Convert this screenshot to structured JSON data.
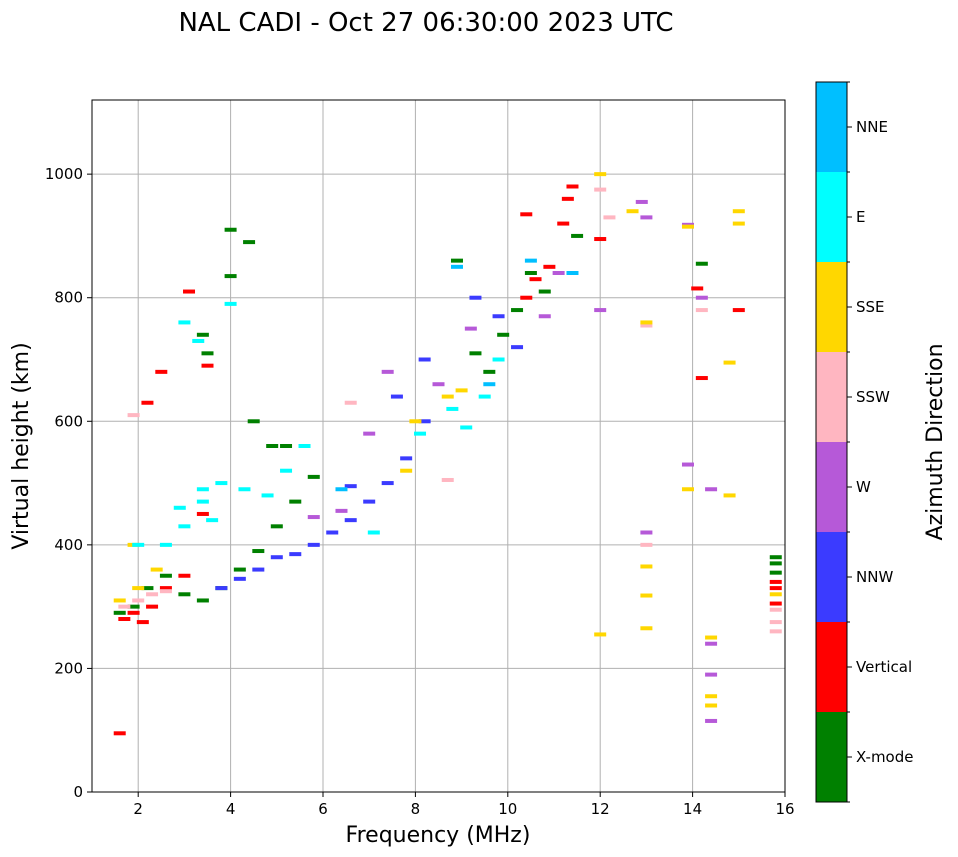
{
  "chart_data": {
    "type": "scatter",
    "title": "NAL CADI - Oct 27 06:30:00 2023 UTC",
    "xlabel": "Frequency (MHz)",
    "ylabel": "Virtual height (km)",
    "xlim": [
      1,
      16
    ],
    "ylim": [
      0,
      1120
    ],
    "xticks": [
      2,
      4,
      6,
      8,
      10,
      12,
      14,
      16
    ],
    "yticks": [
      0,
      200,
      400,
      600,
      800,
      1000
    ],
    "grid": true,
    "colorbar": {
      "label": "Azimuth Direction",
      "categories": [
        "X-mode",
        "Vertical",
        "NNW",
        "W",
        "SSW",
        "SSE",
        "E",
        "NNE"
      ],
      "colors": [
        "#008000",
        "#ff0000",
        "#3b3bff",
        "#b659d8",
        "#ffb6c1",
        "#ffd700",
        "#00ffff",
        "#00bfff"
      ]
    },
    "series": [
      {
        "name": "X-mode",
        "points": [
          [
            1.6,
            290
          ],
          [
            1.9,
            300
          ],
          [
            2.2,
            330
          ],
          [
            2.6,
            350
          ],
          [
            3.0,
            320
          ],
          [
            3.4,
            310
          ],
          [
            3.8,
            330
          ],
          [
            4.2,
            360
          ],
          [
            4.6,
            390
          ],
          [
            5.0,
            430
          ],
          [
            5.4,
            470
          ],
          [
            5.8,
            510
          ],
          [
            3.4,
            740
          ],
          [
            3.5,
            710
          ],
          [
            4.0,
            835
          ],
          [
            4.0,
            910
          ],
          [
            4.4,
            890
          ],
          [
            4.5,
            600
          ],
          [
            4.9,
            560
          ],
          [
            5.2,
            560
          ],
          [
            8.9,
            860
          ],
          [
            9.3,
            710
          ],
          [
            9.6,
            680
          ],
          [
            9.9,
            740
          ],
          [
            10.2,
            780
          ],
          [
            10.5,
            840
          ],
          [
            10.8,
            810
          ],
          [
            11.5,
            900
          ],
          [
            14.2,
            855
          ],
          [
            15.8,
            380
          ],
          [
            15.8,
            370
          ],
          [
            15.8,
            355
          ]
        ]
      },
      {
        "name": "Vertical",
        "points": [
          [
            1.6,
            95
          ],
          [
            1.7,
            280
          ],
          [
            1.9,
            290
          ],
          [
            2.1,
            275
          ],
          [
            2.3,
            300
          ],
          [
            2.6,
            330
          ],
          [
            3.0,
            350
          ],
          [
            3.4,
            450
          ],
          [
            3.5,
            690
          ],
          [
            2.5,
            680
          ],
          [
            2.2,
            630
          ],
          [
            3.1,
            810
          ],
          [
            10.4,
            800
          ],
          [
            10.6,
            830
          ],
          [
            10.9,
            850
          ],
          [
            11.2,
            920
          ],
          [
            11.3,
            960
          ],
          [
            11.4,
            980
          ],
          [
            10.4,
            935
          ],
          [
            12.0,
            895
          ],
          [
            14.1,
            815
          ],
          [
            14.2,
            670
          ],
          [
            15.0,
            780
          ],
          [
            15.8,
            340
          ],
          [
            15.8,
            330
          ],
          [
            15.8,
            305
          ]
        ]
      },
      {
        "name": "NNW",
        "points": [
          [
            3.8,
            330
          ],
          [
            4.2,
            345
          ],
          [
            4.6,
            360
          ],
          [
            5.0,
            380
          ],
          [
            5.4,
            385
          ],
          [
            5.8,
            400
          ],
          [
            6.2,
            420
          ],
          [
            6.6,
            440
          ],
          [
            6.6,
            495
          ],
          [
            7.0,
            470
          ],
          [
            7.4,
            500
          ],
          [
            7.8,
            540
          ],
          [
            8.2,
            600
          ],
          [
            7.6,
            640
          ],
          [
            8.2,
            700
          ],
          [
            9.3,
            800
          ],
          [
            9.8,
            770
          ],
          [
            10.2,
            720
          ]
        ]
      },
      {
        "name": "W",
        "points": [
          [
            5.8,
            445
          ],
          [
            6.4,
            455
          ],
          [
            7.0,
            580
          ],
          [
            7.4,
            680
          ],
          [
            8.5,
            660
          ],
          [
            9.2,
            750
          ],
          [
            10.8,
            770
          ],
          [
            11.1,
            840
          ],
          [
            12.9,
            955
          ],
          [
            13.0,
            930
          ],
          [
            12.0,
            780
          ],
          [
            13.9,
            530
          ],
          [
            14.4,
            490
          ],
          [
            13.0,
            420
          ],
          [
            14.4,
            240
          ],
          [
            14.4,
            190
          ],
          [
            14.4,
            115
          ],
          [
            13.9,
            918
          ],
          [
            14.2,
            800
          ]
        ]
      },
      {
        "name": "SSW",
        "points": [
          [
            1.7,
            300
          ],
          [
            2.0,
            310
          ],
          [
            2.3,
            320
          ],
          [
            2.6,
            325
          ],
          [
            1.9,
            610
          ],
          [
            6.6,
            630
          ],
          [
            8.7,
            505
          ],
          [
            12.0,
            975
          ],
          [
            12.2,
            930
          ],
          [
            13.0,
            400
          ],
          [
            15.8,
            295
          ],
          [
            15.8,
            275
          ],
          [
            15.8,
            260
          ],
          [
            14.2,
            780
          ],
          [
            13.0,
            755
          ]
        ]
      },
      {
        "name": "SSE",
        "points": [
          [
            1.6,
            310
          ],
          [
            2.0,
            330
          ],
          [
            1.9,
            400
          ],
          [
            2.4,
            360
          ],
          [
            7.8,
            520
          ],
          [
            8.0,
            600
          ],
          [
            8.7,
            640
          ],
          [
            9.0,
            650
          ],
          [
            12.0,
            1000
          ],
          [
            12.0,
            255
          ],
          [
            12.7,
            940
          ],
          [
            13.0,
            365
          ],
          [
            13.0,
            318
          ],
          [
            13.0,
            265
          ],
          [
            13.9,
            490
          ],
          [
            13.9,
            915
          ],
          [
            14.4,
            250
          ],
          [
            14.4,
            155
          ],
          [
            14.4,
            140
          ],
          [
            14.8,
            695
          ],
          [
            14.8,
            480
          ],
          [
            15.0,
            940
          ],
          [
            15.0,
            920
          ],
          [
            15.8,
            320
          ],
          [
            13.0,
            760
          ]
        ]
      },
      {
        "name": "E",
        "points": [
          [
            2.0,
            400
          ],
          [
            2.6,
            400
          ],
          [
            3.0,
            430
          ],
          [
            3.4,
            470
          ],
          [
            3.8,
            500
          ],
          [
            4.3,
            490
          ],
          [
            4.8,
            480
          ],
          [
            5.2,
            520
          ],
          [
            5.6,
            560
          ],
          [
            3.0,
            760
          ],
          [
            3.3,
            730
          ],
          [
            4.0,
            790
          ],
          [
            3.6,
            440
          ],
          [
            7.1,
            420
          ],
          [
            8.1,
            580
          ],
          [
            8.8,
            620
          ],
          [
            9.1,
            590
          ],
          [
            9.5,
            640
          ],
          [
            9.8,
            700
          ],
          [
            3.4,
            490
          ],
          [
            2.9,
            460
          ]
        ]
      },
      {
        "name": "NNE",
        "points": [
          [
            6.4,
            490
          ],
          [
            8.9,
            850
          ],
          [
            9.6,
            660
          ],
          [
            10.5,
            860
          ],
          [
            11.4,
            840
          ]
        ]
      }
    ]
  }
}
